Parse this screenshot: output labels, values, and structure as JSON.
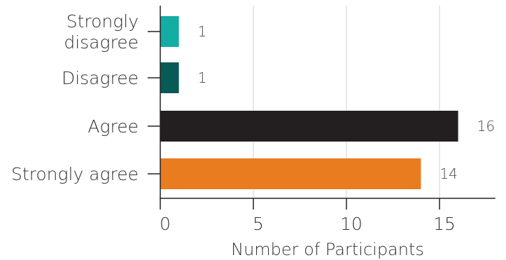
{
  "chart_data": {
    "type": "bar",
    "orientation": "horizontal",
    "categories": [
      "Strongly disagree",
      "Disagree",
      "Agree",
      "Strongly agree"
    ],
    "category_label_lines": [
      [
        "Strongly",
        "disagree"
      ],
      [
        "Disagree"
      ],
      [
        "Agree"
      ],
      [
        "Strongly agree"
      ]
    ],
    "values": [
      1,
      1,
      16,
      14
    ],
    "colors": [
      "#13ada4",
      "#075a55",
      "#231f20",
      "#e97c1e"
    ],
    "xlabel": "Number of Participants",
    "ylabel": "",
    "title": "",
    "xlim": [
      0,
      18
    ],
    "xticks": [
      0,
      5,
      10,
      15
    ],
    "grid": "vertical",
    "grid_color": "#d9d9d9"
  }
}
